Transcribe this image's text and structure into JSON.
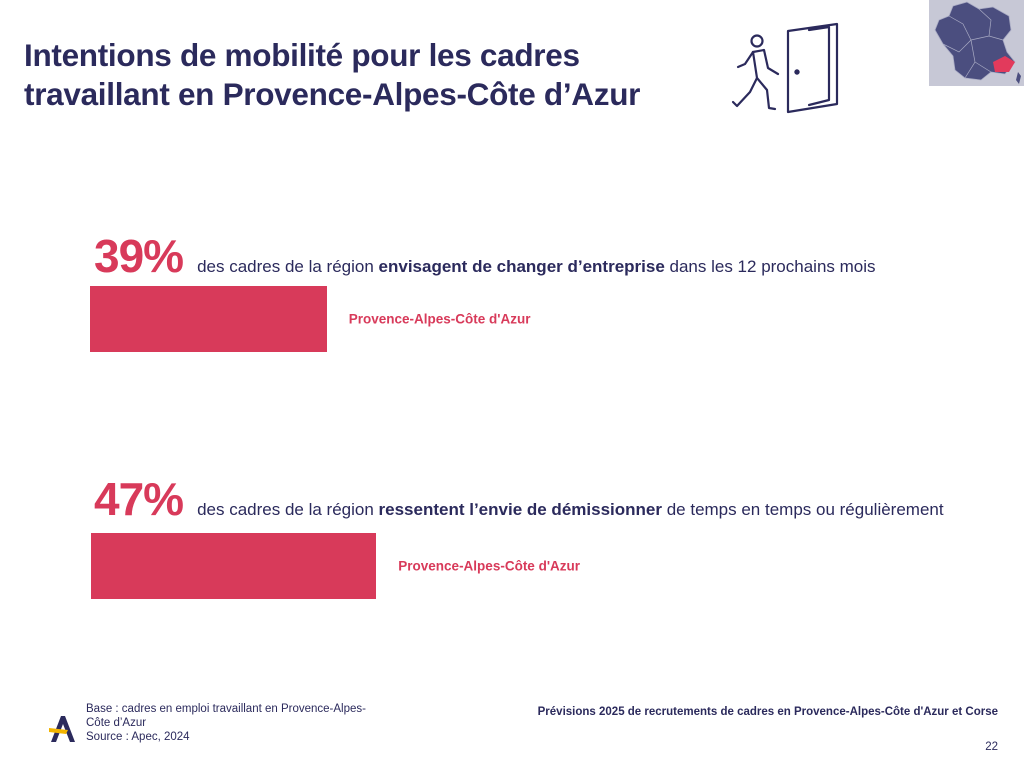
{
  "title_line1": "Intentions de mobilité pour les cadres",
  "title_line2": "travaillant en Provence-Alpes-Côte d’Azur",
  "icons": {
    "walker": "person-walking-through-door-icon",
    "map": "france-map-icon",
    "logo": "apec-logo-icon"
  },
  "colors": {
    "accent": "#d83a5a",
    "navy": "#2b2a5c",
    "map_bg": "#c7c8d6",
    "map_land": "#4b4e7f"
  },
  "chart_data": [
    {
      "type": "bar",
      "categories": [
        "Provence-Alpes-Côte d'Azur"
      ],
      "values": [
        39
      ],
      "unit": "%",
      "headline": "39%",
      "text_before": "des cadres de la région ",
      "text_bold": "envisagent de changer d’entreprise",
      "text_after": " dans les 12 prochains mois",
      "bar_label": "Provence-Alpes-Côte d'Azur"
    },
    {
      "type": "bar",
      "categories": [
        "Provence-Alpes-Côte d'Azur"
      ],
      "values": [
        47
      ],
      "unit": "%",
      "headline": "47%",
      "text_before": "des cadres de la région ",
      "text_bold": "ressentent l’envie de démissionner",
      "text_after": " de temps en temps ou régulièrement",
      "bar_label": "Provence-Alpes-Côte d'Azur"
    }
  ],
  "footer": {
    "base_line1": "Base : cadres en emploi travaillant en Provence-Alpes-",
    "base_line2": "Côte d’Azur",
    "source": "Source : Apec, 2024",
    "title": "Prévisions 2025 de recrutements de cadres en Provence-Alpes-Côte d'Azur et Corse",
    "page": "22"
  }
}
